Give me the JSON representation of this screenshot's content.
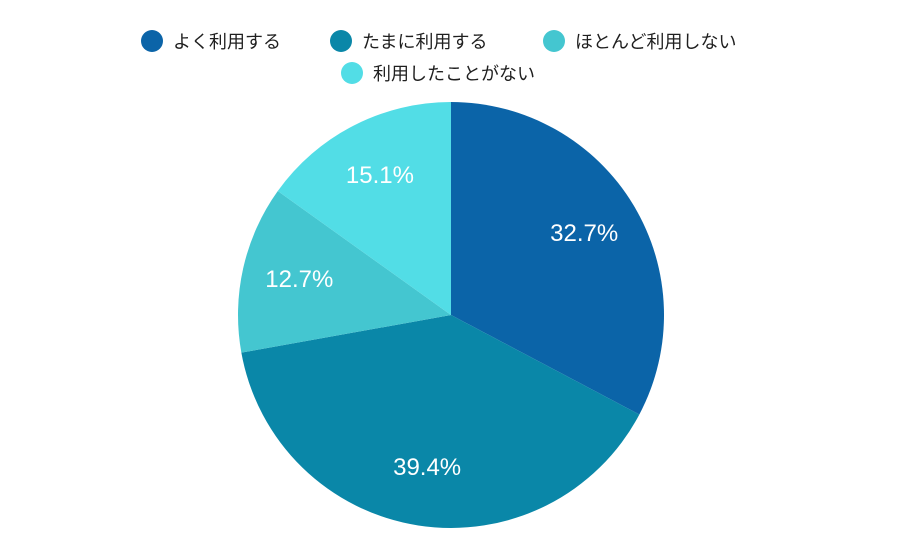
{
  "chart_data": {
    "type": "pie",
    "categories": [
      "よく利用する",
      "たまに利用する",
      "ほとんど利用しない",
      "利用したことがない"
    ],
    "values": [
      32.7,
      39.4,
      12.7,
      15.1
    ],
    "labels": [
      "32.7%",
      "39.4%",
      "12.7%",
      "15.1%"
    ],
    "colors": [
      "#0b64a8",
      "#0a87a8",
      "#44c6d0",
      "#52dde6"
    ],
    "legend_position": "top"
  }
}
